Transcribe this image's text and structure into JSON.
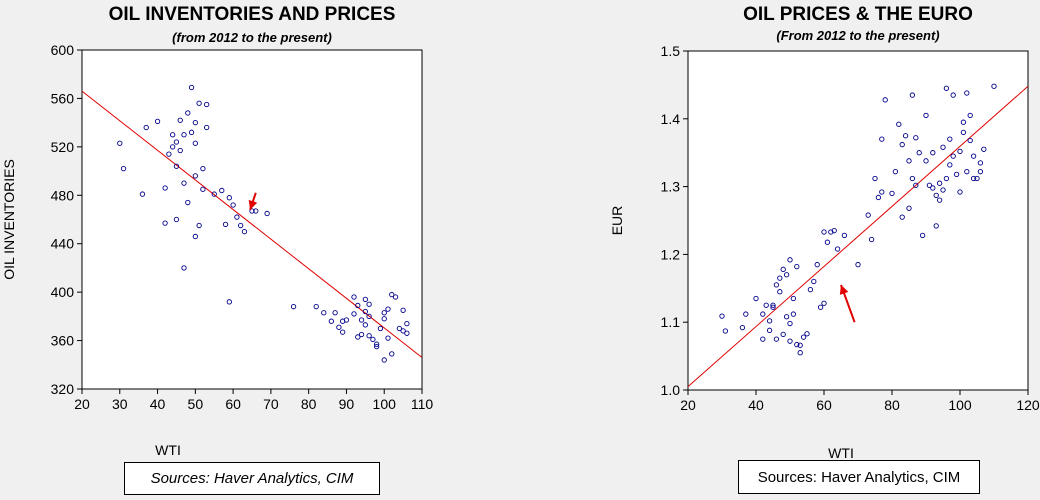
{
  "chart_data": [
    {
      "type": "scatter",
      "title": "OIL INVENTORIES AND PRICES",
      "subtitle": "(from 2012 to the present)",
      "xlabel": "WTI",
      "ylabel": "OIL INVENTORIES",
      "xlim": [
        20,
        110
      ],
      "ylim": [
        320,
        600
      ],
      "xticks": [
        20,
        30,
        40,
        50,
        60,
        70,
        80,
        90,
        100,
        110
      ],
      "yticks": [
        320,
        360,
        400,
        440,
        480,
        520,
        560,
        600
      ],
      "point_color": "#00008b",
      "line_color": "#e00000",
      "arrow_color": "#e00000",
      "fit_line": [
        [
          20,
          566
        ],
        [
          110,
          346
        ]
      ],
      "arrow": {
        "from": [
          66,
          482
        ],
        "to": [
          64.5,
          468
        ]
      },
      "source": "Sources:  Haver Analytics, CIM",
      "points": [
        [
          30,
          523
        ],
        [
          31,
          502
        ],
        [
          36,
          481
        ],
        [
          37,
          536
        ],
        [
          40,
          541
        ],
        [
          42,
          486
        ],
        [
          42,
          457
        ],
        [
          43,
          514
        ],
        [
          44,
          520
        ],
        [
          44,
          530
        ],
        [
          45,
          524
        ],
        [
          45,
          460
        ],
        [
          45,
          504
        ],
        [
          46,
          542
        ],
        [
          46,
          517
        ],
        [
          47,
          530
        ],
        [
          47,
          490
        ],
        [
          47,
          420
        ],
        [
          48,
          474
        ],
        [
          48,
          548
        ],
        [
          49,
          532
        ],
        [
          49,
          569
        ],
        [
          50,
          540
        ],
        [
          50,
          523
        ],
        [
          50,
          496
        ],
        [
          50,
          446
        ],
        [
          51,
          556
        ],
        [
          51,
          455
        ],
        [
          52,
          502
        ],
        [
          52,
          485
        ],
        [
          53,
          536
        ],
        [
          53,
          555
        ],
        [
          55,
          481
        ],
        [
          57,
          484
        ],
        [
          58,
          456
        ],
        [
          59,
          392
        ],
        [
          59,
          478
        ],
        [
          60,
          472
        ],
        [
          61,
          462
        ],
        [
          62,
          455
        ],
        [
          63,
          450
        ],
        [
          65,
          467
        ],
        [
          66,
          467
        ],
        [
          69,
          465
        ],
        [
          76,
          388
        ],
        [
          82,
          388
        ],
        [
          84,
          383
        ],
        [
          86,
          376
        ],
        [
          87,
          383
        ],
        [
          88,
          371
        ],
        [
          89,
          367
        ],
        [
          89,
          376
        ],
        [
          92,
          396
        ],
        [
          92,
          382
        ],
        [
          93,
          389
        ],
        [
          94,
          377
        ],
        [
          94,
          365
        ],
        [
          95,
          394
        ],
        [
          95,
          384
        ],
        [
          95,
          373
        ],
        [
          96,
          380
        ],
        [
          96,
          364
        ],
        [
          97,
          361
        ],
        [
          98,
          357
        ],
        [
          99,
          370
        ],
        [
          100,
          383
        ],
        [
          100,
          378
        ],
        [
          100,
          344
        ],
        [
          101,
          386
        ],
        [
          101,
          362
        ],
        [
          102,
          398
        ],
        [
          102,
          349
        ],
        [
          103,
          396
        ],
        [
          104,
          370
        ],
        [
          105,
          368
        ],
        [
          105,
          385
        ],
        [
          106,
          374
        ],
        [
          106,
          366
        ],
        [
          96,
          390
        ],
        [
          90,
          377
        ],
        [
          93,
          363
        ],
        [
          98,
          355
        ]
      ]
    },
    {
      "type": "scatter",
      "title": "OIL PRICES & THE EURO",
      "subtitle": "(From 2012 to the present)",
      "xlabel": "WTI",
      "ylabel": "EUR",
      "xlim": [
        20,
        120
      ],
      "ylim": [
        1.0,
        1.5
      ],
      "xticks": [
        20,
        40,
        60,
        80,
        100,
        120
      ],
      "yticks": [
        1.0,
        1.1,
        1.2,
        1.3,
        1.4,
        1.5
      ],
      "point_color": "#00008b",
      "line_color": "#e00000",
      "arrow_color": "#e00000",
      "fit_line": [
        [
          20,
          1.005
        ],
        [
          120,
          1.448
        ]
      ],
      "arrow": {
        "from": [
          69,
          1.1
        ],
        "to": [
          65,
          1.155
        ]
      },
      "source": "Sources:  Haver Analytics, CIM",
      "points": [
        [
          30,
          1.109
        ],
        [
          31,
          1.087
        ],
        [
          36,
          1.092
        ],
        [
          37,
          1.112
        ],
        [
          40,
          1.135
        ],
        [
          42,
          1.075
        ],
        [
          42,
          1.112
        ],
        [
          43,
          1.125
        ],
        [
          44,
          1.102
        ],
        [
          44,
          1.088
        ],
        [
          45,
          1.122
        ],
        [
          45,
          1.125
        ],
        [
          46,
          1.155
        ],
        [
          46,
          1.075
        ],
        [
          47,
          1.145
        ],
        [
          47,
          1.165
        ],
        [
          48,
          1.178
        ],
        [
          48,
          1.082
        ],
        [
          49,
          1.108
        ],
        [
          49,
          1.17
        ],
        [
          50,
          1.192
        ],
        [
          50,
          1.098
        ],
        [
          50,
          1.072
        ],
        [
          51,
          1.135
        ],
        [
          51,
          1.112
        ],
        [
          52,
          1.182
        ],
        [
          52,
          1.067
        ],
        [
          53,
          1.055
        ],
        [
          53,
          1.066
        ],
        [
          54,
          1.078
        ],
        [
          55,
          1.083
        ],
        [
          56,
          1.148
        ],
        [
          57,
          1.16
        ],
        [
          58,
          1.185
        ],
        [
          59,
          1.122
        ],
        [
          60,
          1.233
        ],
        [
          60,
          1.128
        ],
        [
          61,
          1.218
        ],
        [
          62,
          1.233
        ],
        [
          63,
          1.235
        ],
        [
          64,
          1.208
        ],
        [
          66,
          1.228
        ],
        [
          70,
          1.185
        ],
        [
          73,
          1.258
        ],
        [
          74,
          1.222
        ],
        [
          75,
          1.312
        ],
        [
          76,
          1.284
        ],
        [
          77,
          1.292
        ],
        [
          77,
          1.37
        ],
        [
          78,
          1.428
        ],
        [
          80,
          1.29
        ],
        [
          81,
          1.322
        ],
        [
          82,
          1.392
        ],
        [
          83,
          1.255
        ],
        [
          83,
          1.362
        ],
        [
          84,
          1.375
        ],
        [
          85,
          1.338
        ],
        [
          85,
          1.268
        ],
        [
          86,
          1.312
        ],
        [
          86,
          1.435
        ],
        [
          87,
          1.372
        ],
        [
          87,
          1.302
        ],
        [
          88,
          1.35
        ],
        [
          89,
          1.228
        ],
        [
          90,
          1.338
        ],
        [
          90,
          1.405
        ],
        [
          91,
          1.302
        ],
        [
          92,
          1.298
        ],
        [
          92,
          1.35
        ],
        [
          93,
          1.287
        ],
        [
          93,
          1.242
        ],
        [
          94,
          1.28
        ],
        [
          94,
          1.305
        ],
        [
          95,
          1.358
        ],
        [
          95,
          1.295
        ],
        [
          96,
          1.312
        ],
        [
          96,
          1.445
        ],
        [
          97,
          1.37
        ],
        [
          97,
          1.332
        ],
        [
          98,
          1.435
        ],
        [
          98,
          1.345
        ],
        [
          99,
          1.318
        ],
        [
          100,
          1.292
        ],
        [
          100,
          1.352
        ],
        [
          101,
          1.395
        ],
        [
          101,
          1.38
        ],
        [
          102,
          1.438
        ],
        [
          102,
          1.322
        ],
        [
          103,
          1.405
        ],
        [
          103,
          1.368
        ],
        [
          104,
          1.312
        ],
        [
          104,
          1.345
        ],
        [
          105,
          1.312
        ],
        [
          106,
          1.335
        ],
        [
          106,
          1.322
        ],
        [
          107,
          1.355
        ],
        [
          110,
          1.448
        ]
      ]
    }
  ]
}
